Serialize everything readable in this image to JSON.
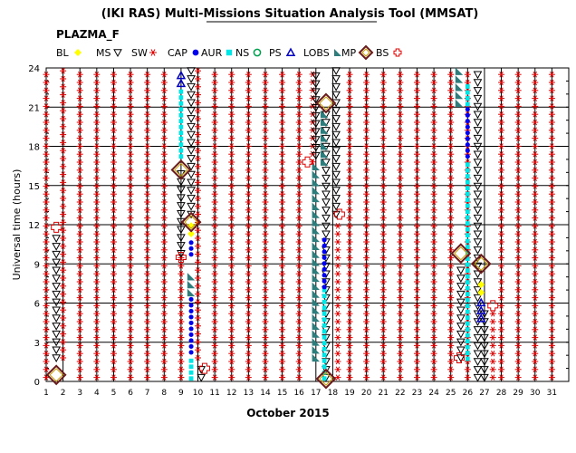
{
  "chart_data": {
    "type": "scatter",
    "title": "(IKI RAS) Multi-Missions Situation Analysis Tool (MMSAT)",
    "subtitle": "PLAZMA_F",
    "xlabel": "October 2015",
    "ylabel": "Universal time (hours)",
    "x_ticks": [
      "1",
      "2",
      "3",
      "4",
      "5",
      "6",
      "7",
      "8",
      "9",
      "10",
      "11",
      "12",
      "13",
      "14",
      "15",
      "16",
      "17",
      "18",
      "19",
      "20",
      "21",
      "22",
      "23",
      "24",
      "25",
      "26",
      "27",
      "28",
      "29",
      "30",
      "31"
    ],
    "y_ticks": [
      "0",
      "3",
      "6",
      "9",
      "12",
      "15",
      "18",
      "21",
      "24"
    ],
    "xlim": [
      1,
      32
    ],
    "ylim": [
      0,
      24
    ],
    "grid": true,
    "legend": [
      {
        "label": "BL",
        "marker": "bl-diamond-yellow",
        "color": "#ffff00"
      },
      {
        "label": "MS",
        "marker": "ms-triangle-down-black",
        "color": "#000000"
      },
      {
        "label": "SW",
        "marker": "sw-asterisk-red",
        "color": "#dd0000"
      },
      {
        "label": "CAP",
        "marker": "cap-circle-blue",
        "color": "#0000ee"
      },
      {
        "label": "AUR",
        "marker": "aur-square-cyan",
        "color": "#00e5e5"
      },
      {
        "label": "NS",
        "marker": "ns-circle-green",
        "color": "#00a050"
      },
      {
        "label": "PS",
        "marker": "ps-triangle-up-blue",
        "color": "#0000c0"
      },
      {
        "label": "LOBS",
        "marker": "lobs-triangle-teal",
        "color": "#2e7d7d"
      },
      {
        "label": "MP",
        "marker": "mp-diamond-brown",
        "color": "#6a1b1b"
      },
      {
        "label": "BS",
        "marker": "bs-cross-red",
        "color": "#dd0000"
      }
    ],
    "series": [
      {
        "name": "SW",
        "segments": [
          {
            "x": 1,
            "from": 0,
            "to": 24
          },
          {
            "x": 2,
            "from": 1.5,
            "to": 24
          },
          {
            "x": 3,
            "from": 0,
            "to": 24
          },
          {
            "x": 4,
            "from": 0,
            "to": 24
          },
          {
            "x": 5,
            "from": 0,
            "to": 24
          },
          {
            "x": 6,
            "from": 0,
            "to": 24
          },
          {
            "x": 7,
            "from": 0,
            "to": 24
          },
          {
            "x": 8,
            "from": 0,
            "to": 24
          },
          {
            "x": 9,
            "from": 0,
            "to": 9.5
          },
          {
            "x": 10,
            "from": 1.5,
            "to": 24
          },
          {
            "x": 11,
            "from": 0,
            "to": 24
          },
          {
            "x": 12,
            "from": 0,
            "to": 24
          },
          {
            "x": 13,
            "from": 0,
            "to": 24
          },
          {
            "x": 14,
            "from": 0,
            "to": 24
          },
          {
            "x": 15,
            "from": 0,
            "to": 24
          },
          {
            "x": 16,
            "from": 0,
            "to": 24
          },
          {
            "x": 16.8,
            "from": 16.5,
            "to": 24
          },
          {
            "x": 18.3,
            "from": 0,
            "to": 12.5
          },
          {
            "x": 19,
            "from": 0,
            "to": 24
          },
          {
            "x": 20,
            "from": 0,
            "to": 24
          },
          {
            "x": 21,
            "from": 0,
            "to": 24
          },
          {
            "x": 22,
            "from": 0,
            "to": 24
          },
          {
            "x": 23,
            "from": 0,
            "to": 24
          },
          {
            "x": 24,
            "from": 0,
            "to": 24
          },
          {
            "x": 25,
            "from": 0,
            "to": 24
          },
          {
            "x": 26,
            "from": 0,
            "to": 24
          },
          {
            "x": 27.5,
            "from": 0,
            "to": 5.5
          },
          {
            "x": 28,
            "from": 0,
            "to": 24
          },
          {
            "x": 29,
            "from": 0,
            "to": 24
          },
          {
            "x": 30,
            "from": 0,
            "to": 24
          },
          {
            "x": 31,
            "from": 0,
            "to": 24
          }
        ]
      },
      {
        "name": "MS",
        "segments": [
          {
            "x": 1.6,
            "from": 1.5,
            "to": 11
          },
          {
            "x": 9,
            "from": 9.5,
            "to": 16
          },
          {
            "x": 9.6,
            "from": 12.5,
            "to": 24
          },
          {
            "x": 10.2,
            "from": 0,
            "to": 1.5
          },
          {
            "x": 17,
            "from": 17,
            "to": 24
          },
          {
            "x": 17.6,
            "from": 0,
            "to": 21
          },
          {
            "x": 18.2,
            "from": 12.5,
            "to": 24
          },
          {
            "x": 25.6,
            "from": 1.5,
            "to": 9
          },
          {
            "x": 26.6,
            "from": 0,
            "to": 24
          },
          {
            "x": 27,
            "from": 0,
            "to": 5.5
          }
        ]
      },
      {
        "name": "AUR",
        "segments": [
          {
            "x": 9,
            "from": 17,
            "to": 22.5
          },
          {
            "x": 9.6,
            "from": 0,
            "to": 2
          },
          {
            "x": 17.5,
            "from": 0,
            "to": 7
          },
          {
            "x": 26,
            "from": 1.5,
            "to": 17
          },
          {
            "x": 26,
            "from": 21,
            "to": 23
          }
        ]
      },
      {
        "name": "CAP",
        "segments": [
          {
            "x": 9.6,
            "from": 2,
            "to": 6.5
          },
          {
            "x": 9.6,
            "from": 9.5,
            "to": 11
          },
          {
            "x": 17.5,
            "from": 7,
            "to": 11
          },
          {
            "x": 26,
            "from": 17,
            "to": 21
          }
        ]
      },
      {
        "name": "LOBS",
        "segments": [
          {
            "x": 9.6,
            "from": 6.5,
            "to": 8.5
          },
          {
            "x": 17,
            "from": 1.5,
            "to": 16.5
          },
          {
            "x": 17.5,
            "from": 16.5,
            "to": 20.5
          },
          {
            "x": 25.5,
            "from": 21,
            "to": 23.8
          }
        ]
      },
      {
        "name": "PS",
        "segments": [
          {
            "x": 9,
            "from": 22.5,
            "to": 23.5
          },
          {
            "x": 26.8,
            "from": 4.5,
            "to": 6.5
          }
        ]
      },
      {
        "name": "BL",
        "segments": [
          {
            "x": 9.6,
            "from": 11,
            "to": 12
          },
          {
            "x": 26.8,
            "from": 6.5,
            "to": 8
          }
        ]
      },
      {
        "name": "MP",
        "points": [
          {
            "x": 1.6,
            "y": 0.5
          },
          {
            "x": 9,
            "y": 16.2
          },
          {
            "x": 9.6,
            "y": 12.2
          },
          {
            "x": 17.6,
            "y": 0.2
          },
          {
            "x": 17.6,
            "y": 21.3
          },
          {
            "x": 25.6,
            "y": 9.8
          },
          {
            "x": 26.8,
            "y": 9
          }
        ]
      },
      {
        "name": "BS",
        "points": [
          {
            "x": 1.6,
            "y": 11.8
          },
          {
            "x": 9,
            "y": 9.5
          },
          {
            "x": 10.4,
            "y": 1
          },
          {
            "x": 16.5,
            "y": 16.8
          },
          {
            "x": 18.4,
            "y": 12.8
          },
          {
            "x": 25.5,
            "y": 1.8
          },
          {
            "x": 27.5,
            "y": 5.8
          }
        ]
      }
    ]
  }
}
